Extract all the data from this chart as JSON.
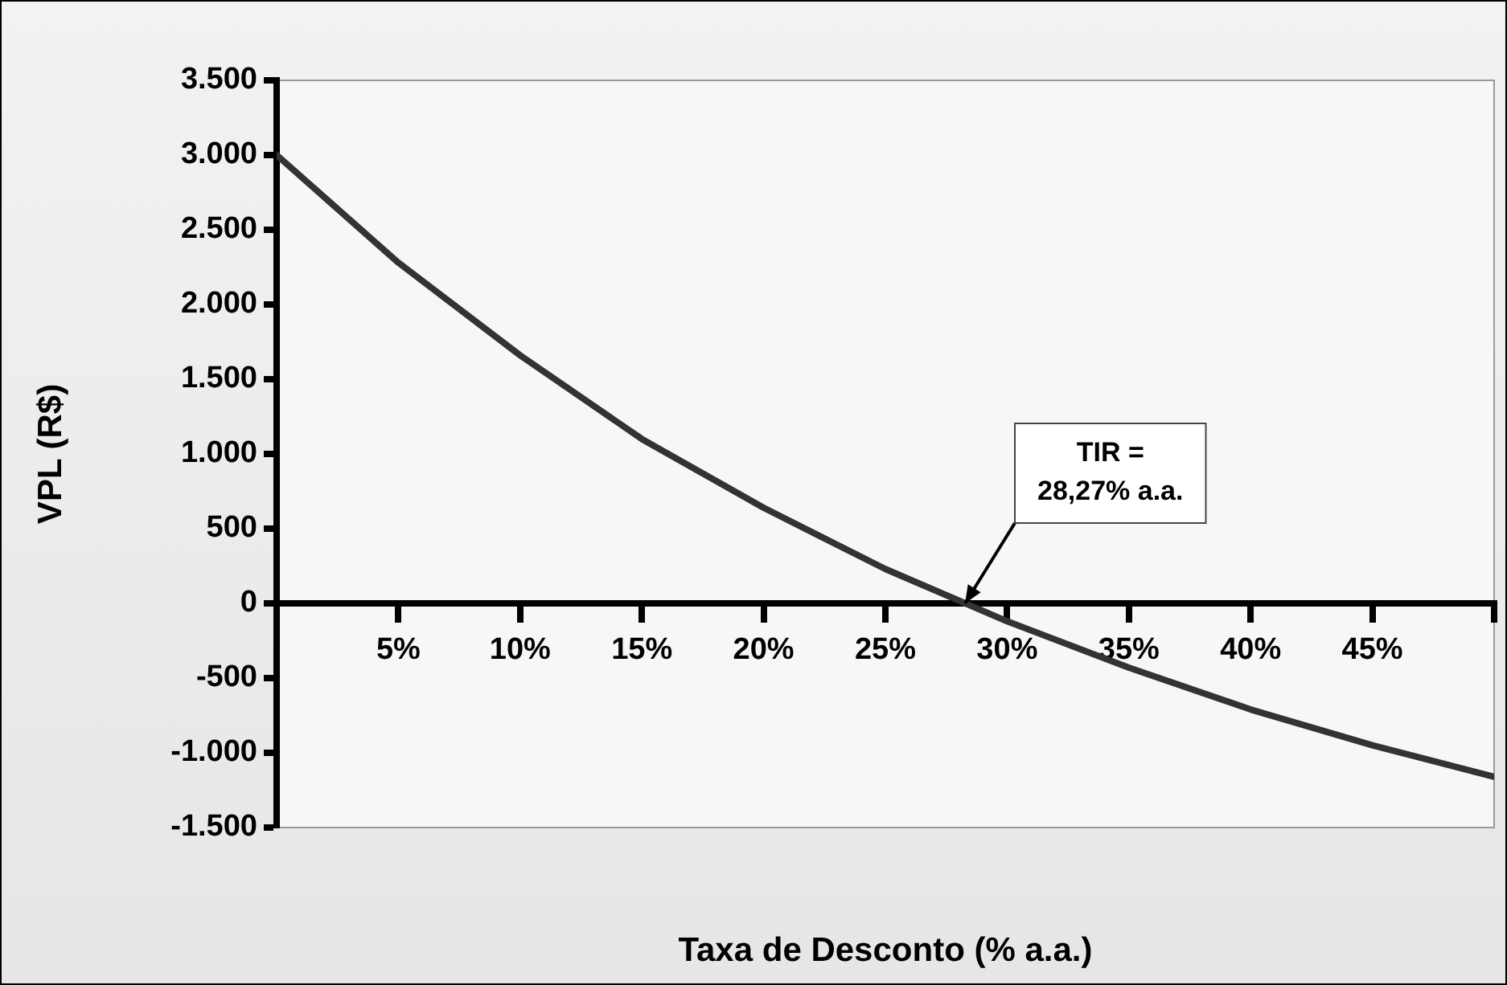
{
  "chart_data": {
    "type": "line",
    "xlabel": "Taxa de Desconto (% a.a.)",
    "ylabel": "VPL (R$)",
    "x": [
      0,
      5,
      10,
      15,
      20,
      25,
      30,
      35,
      40,
      45,
      50
    ],
    "series": [
      {
        "color": "#333333",
        "values": [
          3000,
          2280,
          1660,
          1100,
          640,
          230,
          -120,
          -430,
          -710,
          -950,
          -1160
        ]
      }
    ],
    "xlim": [
      0,
      50
    ],
    "xticks": [
      {
        "value": 0,
        "label": null
      },
      {
        "value": 5,
        "label": "5%"
      },
      {
        "value": 10,
        "label": "10%"
      },
      {
        "value": 15,
        "label": "15%"
      },
      {
        "value": 20,
        "label": "20%"
      },
      {
        "value": 25,
        "label": "25%"
      },
      {
        "value": 30,
        "label": "30%"
      },
      {
        "value": 35,
        "label": "35%"
      },
      {
        "value": 40,
        "label": "40%"
      },
      {
        "value": 45,
        "label": "45%"
      },
      {
        "value": 50,
        "label": null
      }
    ],
    "ylim": [
      -1500,
      3500
    ],
    "yticks": [
      {
        "value": -1500,
        "label": "-1.500"
      },
      {
        "value": -1000,
        "label": "-1.000"
      },
      {
        "value": -500,
        "label": "-500"
      },
      {
        "value": 0,
        "label": "0"
      },
      {
        "value": 500,
        "label": "500"
      },
      {
        "value": 1000,
        "label": "1.000"
      },
      {
        "value": 1500,
        "label": "1.500"
      },
      {
        "value": 2000,
        "label": "2.000"
      },
      {
        "value": 2500,
        "label": "2.500"
      },
      {
        "value": 3000,
        "label": "3.000"
      },
      {
        "value": 3500,
        "label": "3.500"
      }
    ],
    "annotations": [
      {
        "text": "TIR =\n28,27% a.a.",
        "x": 28.27,
        "y": 0
      }
    ],
    "grid": false,
    "legend": false,
    "marker": "none",
    "line_style": "solid"
  }
}
